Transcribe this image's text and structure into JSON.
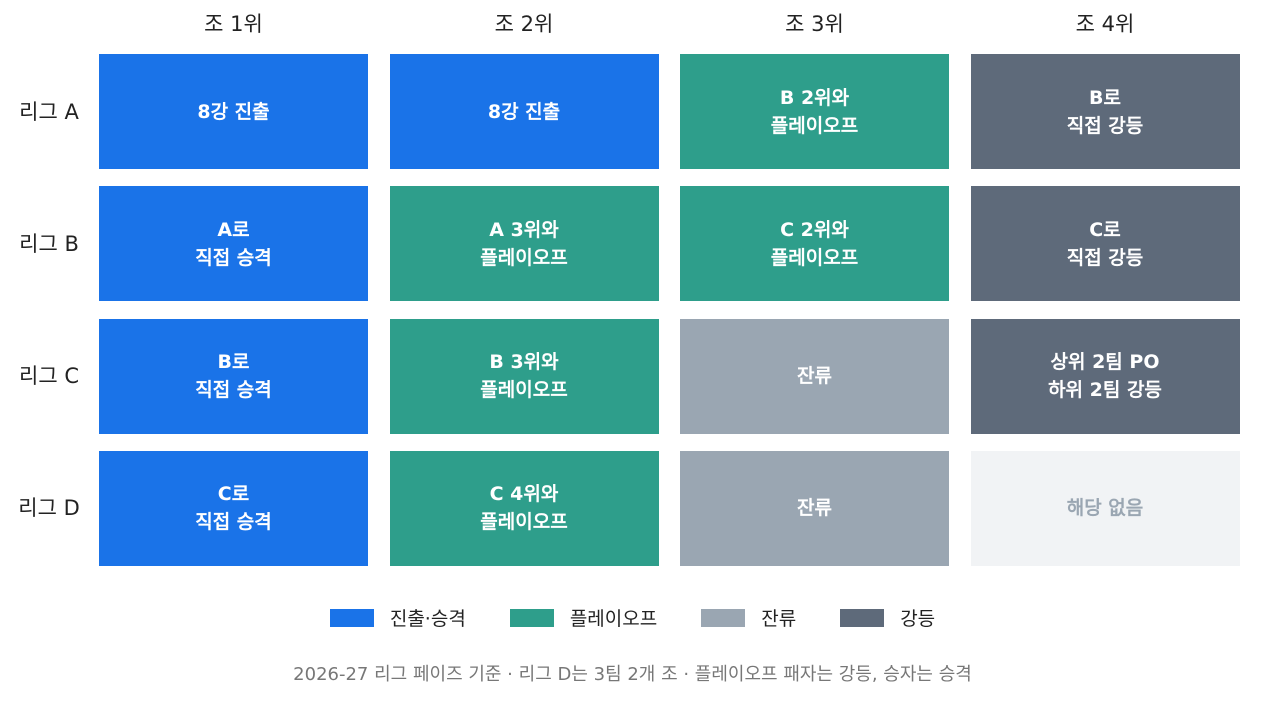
{
  "columns": [
    "조 1위",
    "조 2위",
    "조 3위",
    "조 4위"
  ],
  "rows": [
    {
      "label": "리그 A",
      "cells": [
        {
          "lines": [
            "8강 진출"
          ],
          "color": "#1a73e8"
        },
        {
          "lines": [
            "8강 진출"
          ],
          "color": "#1a73e8"
        },
        {
          "lines": [
            "B 2위와",
            "플레이오프"
          ],
          "color": "#2e9e8b"
        },
        {
          "lines": [
            "B로",
            "직접 강등"
          ],
          "color": "#5e6a7a"
        }
      ]
    },
    {
      "label": "리그 B",
      "cells": [
        {
          "lines": [
            "A로",
            "직접 승격"
          ],
          "color": "#1a73e8"
        },
        {
          "lines": [
            "A 3위와",
            "플레이오프"
          ],
          "color": "#2e9e8b"
        },
        {
          "lines": [
            "C 2위와",
            "플레이오프"
          ],
          "color": "#2e9e8b"
        },
        {
          "lines": [
            "C로",
            "직접 강등"
          ],
          "color": "#5e6a7a"
        }
      ]
    },
    {
      "label": "리그 C",
      "cells": [
        {
          "lines": [
            "B로",
            "직접 승격"
          ],
          "color": "#1a73e8"
        },
        {
          "lines": [
            "B 3위와",
            "플레이오프"
          ],
          "color": "#2e9e8b"
        },
        {
          "lines": [
            "잔류"
          ],
          "color": "#9aa6b2"
        },
        {
          "lines": [
            "상위 2팀 PO",
            "하위 2팀 강등"
          ],
          "color": "#5e6a7a"
        }
      ]
    },
    {
      "label": "리그 D",
      "cells": [
        {
          "lines": [
            "C로",
            "직접 승격"
          ],
          "color": "#1a73e8"
        },
        {
          "lines": [
            "C 4위와",
            "플레이오프"
          ],
          "color": "#2e9e8b"
        },
        {
          "lines": [
            "잔류"
          ],
          "color": "#9aa6b2"
        },
        {
          "lines": [
            "해당 없음"
          ],
          "color": "#f1f3f5",
          "text_color": "#9aa6b2"
        }
      ]
    }
  ],
  "legend": [
    {
      "label": "진출·승격",
      "color": "#1a73e8"
    },
    {
      "label": "플레이오프",
      "color": "#2e9e8b"
    },
    {
      "label": "잔류",
      "color": "#9aa6b2"
    },
    {
      "label": "강등",
      "color": "#5e6a7a"
    }
  ],
  "footnote": "2026-27 리그 페이즈 기준 · 리그 D는 3팀 2개 조 · 플레이오프 패자는 강등, 승자는 승격"
}
